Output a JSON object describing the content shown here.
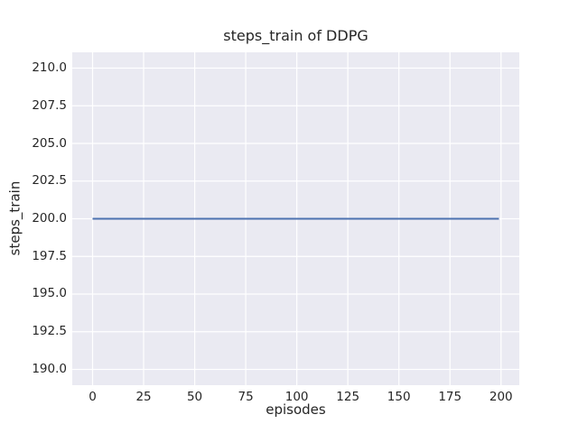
{
  "figure": {
    "background": "#ffffff",
    "text_color": "#262626"
  },
  "chart_data": {
    "type": "line",
    "title": "steps_train of DDPG",
    "xlabel": "episodes",
    "ylabel": "steps_train",
    "series": [
      {
        "name": "steps_train",
        "color": "#4c72b0",
        "x": [
          0,
          199
        ],
        "y": [
          200,
          200
        ]
      }
    ],
    "xlim": [
      -9.95,
      208.95
    ],
    "ylim": [
      188.95,
      211.05
    ],
    "x_ticks": [
      0,
      25,
      50,
      75,
      100,
      125,
      150,
      175,
      200
    ],
    "x_tick_labels": [
      "0",
      "25",
      "50",
      "75",
      "100",
      "125",
      "150",
      "175",
      "200"
    ],
    "y_ticks": [
      190.0,
      192.5,
      195.0,
      197.5,
      200.0,
      202.5,
      205.0,
      207.5,
      210.0
    ],
    "y_tick_labels": [
      "190.0",
      "192.5",
      "195.0",
      "197.5",
      "200.0",
      "202.5",
      "205.0",
      "207.5",
      "210.0"
    ],
    "grid": true,
    "legend_position": "none",
    "style": {
      "panel_bg": "#eaeaf2",
      "grid_color": "#ffffff",
      "line_width": 1.9,
      "grid_width": 1.2
    }
  }
}
